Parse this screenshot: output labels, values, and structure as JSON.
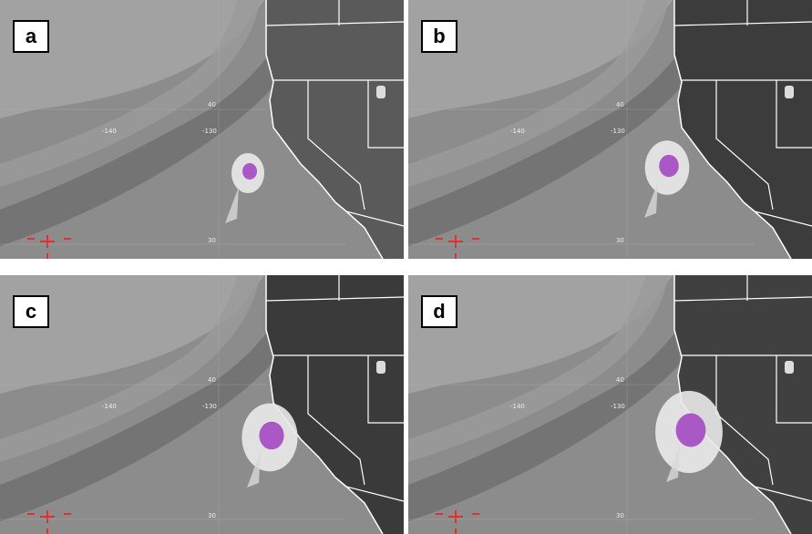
{
  "panels": [
    {
      "label": "a",
      "grid_labels": [
        "40",
        "-140",
        "-130",
        "30"
      ]
    },
    {
      "label": "b",
      "grid_labels": [
        "40",
        "-140",
        "-130",
        "30"
      ]
    },
    {
      "label": "c",
      "grid_labels": [
        "40",
        "-140",
        "-130",
        "30"
      ]
    },
    {
      "label": "d",
      "grid_labels": [
        "40",
        "-140",
        "-130",
        "30"
      ]
    }
  ]
}
